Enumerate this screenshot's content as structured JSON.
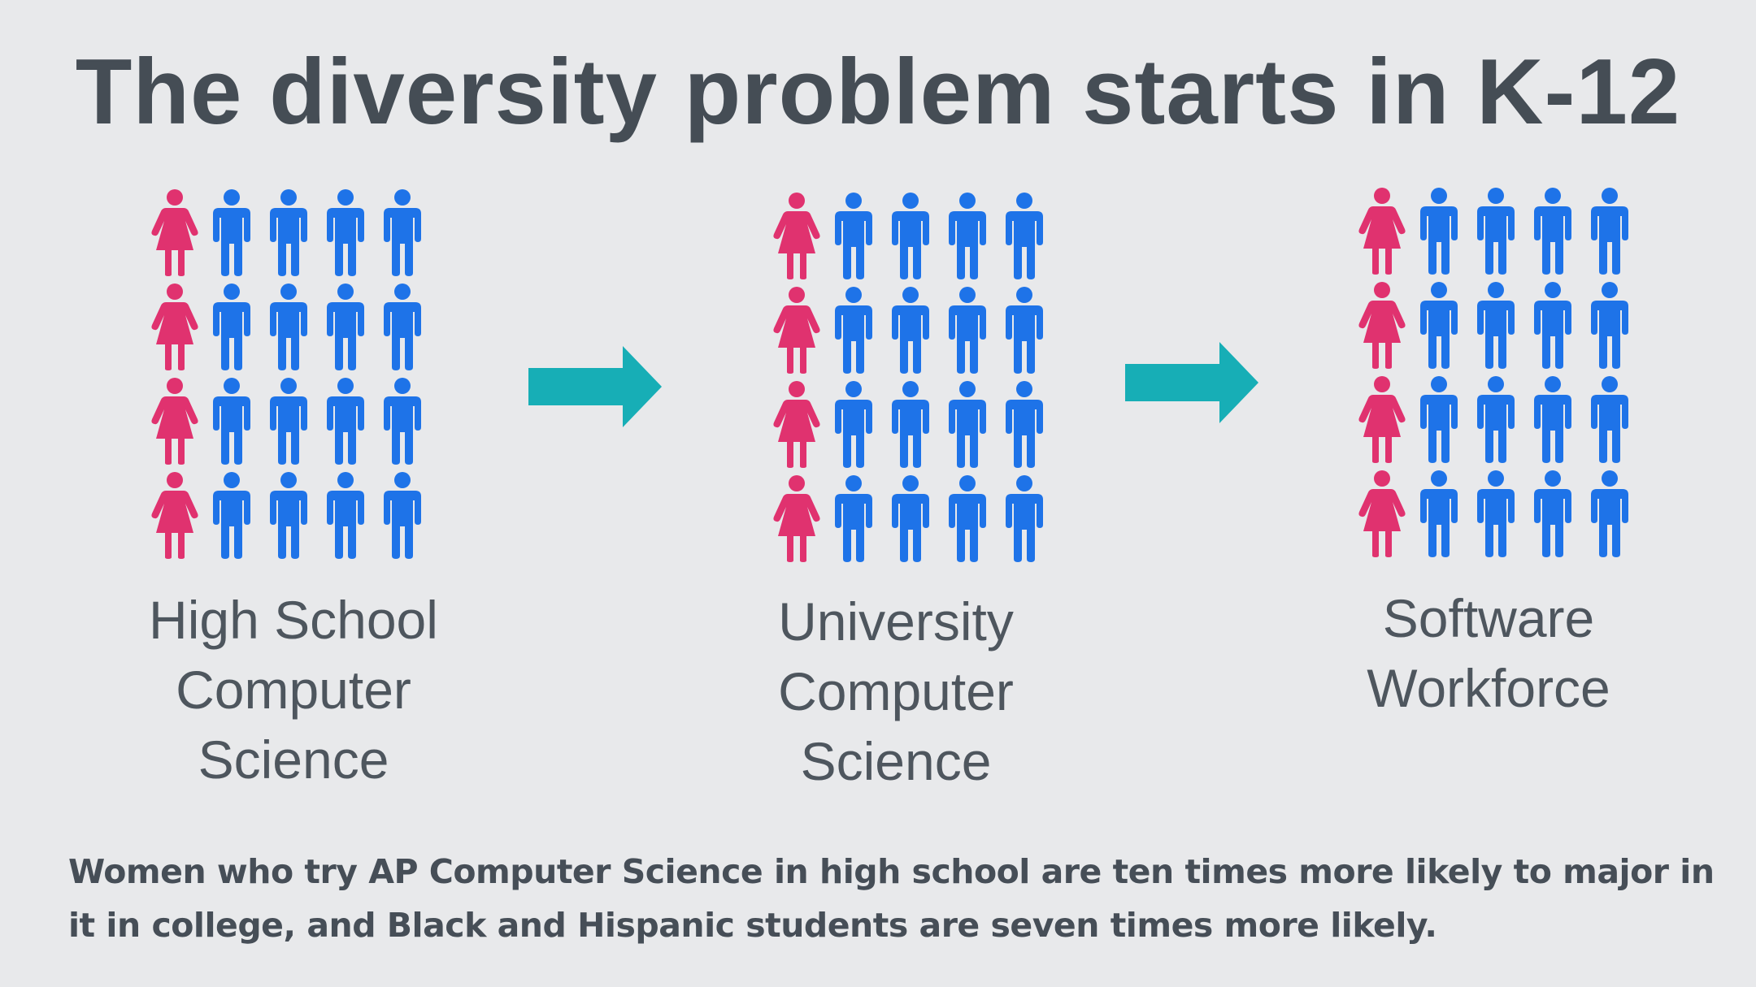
{
  "title": "The diversity problem starts in K-12",
  "colors": {
    "female": "#e0326f",
    "male": "#1e73e8",
    "arrow": "#17aeb6",
    "text": "#464f58"
  },
  "stages": [
    {
      "label_lines": [
        "High School",
        "Computer",
        "Science"
      ],
      "female_per_row": 1,
      "male_per_row": 4,
      "rows": 4
    },
    {
      "label_lines": [
        "University",
        "Computer",
        "Science"
      ],
      "female_per_row": 1,
      "male_per_row": 4,
      "rows": 4
    },
    {
      "label_lines": [
        "Software",
        "Workforce"
      ],
      "female_per_row": 1,
      "male_per_row": 4,
      "rows": 4
    }
  ],
  "footnote": "Women who try AP Computer Science in high school are ten times more likely to major in it in college, and Black and Hispanic students are seven times more likely."
}
